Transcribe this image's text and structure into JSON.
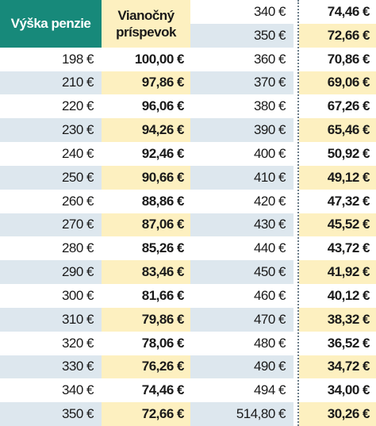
{
  "left_table": {
    "header": {
      "pension": "Výška penzie",
      "bonus": [
        "Vianočný",
        "príspevok"
      ]
    },
    "rows": [
      [
        "198 €",
        "100,00 €"
      ],
      [
        "210 €",
        "97,86 €"
      ],
      [
        "220 €",
        "96,06 €"
      ],
      [
        "230 €",
        "94,26 €"
      ],
      [
        "240 €",
        "92,46 €"
      ],
      [
        "250 €",
        "90,66 €"
      ],
      [
        "260 €",
        "88,86 €"
      ],
      [
        "270 €",
        "87,06 €"
      ],
      [
        "280 €",
        "85,26 €"
      ],
      [
        "290 €",
        "83,46 €"
      ],
      [
        "300 €",
        "81,66 €"
      ],
      [
        "310 €",
        "79,86 €"
      ],
      [
        "320 €",
        "78,06 €"
      ],
      [
        "330 €",
        "76,26 €"
      ],
      [
        "340 €",
        "74,46 €"
      ],
      [
        "350 €",
        "72,66 €"
      ]
    ]
  },
  "right_table": {
    "rows": [
      [
        "340 €",
        "74,46 €"
      ],
      [
        "350 €",
        "72,66 €"
      ],
      [
        "360 €",
        "70,86 €"
      ],
      [
        "370 €",
        "69,06 €"
      ],
      [
        "380 €",
        "67,26 €"
      ],
      [
        "390 €",
        "65,46 €"
      ],
      [
        "400 €",
        "50,92 €"
      ],
      [
        "410 €",
        "49,12 €"
      ],
      [
        "420 €",
        "47,32 €"
      ],
      [
        "430 €",
        "45,52 €"
      ],
      [
        "440 €",
        "43,72 €"
      ],
      [
        "450 €",
        "41,92 €"
      ],
      [
        "460 €",
        "40,12 €"
      ],
      [
        "470 €",
        "38,32 €"
      ],
      [
        "480 €",
        "36,52 €"
      ],
      [
        "490 €",
        "34,72 €"
      ],
      [
        "494 €",
        "34,00 €"
      ],
      [
        "514,80 €",
        "30,26 €"
      ]
    ]
  }
}
